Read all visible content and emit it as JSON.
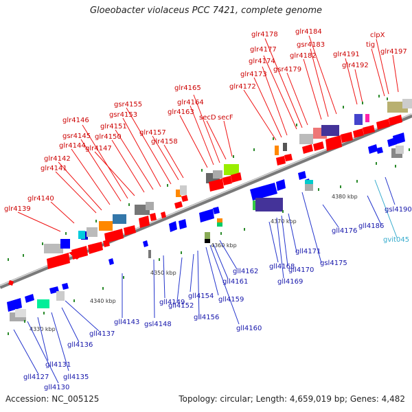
{
  "title": "Gloeobacter violaceus PCC 7421, complete genome",
  "accession": "Accession: NC_005125",
  "topology": "Topology: circular; Length: 4,659,019 bp; Genes: 4,482",
  "ticks": [
    "4330 kbp",
    "4340 kbp",
    "4350 kbp",
    "4360 kbp",
    "4370 kbp",
    "4380 kbp"
  ],
  "colors": {
    "forward": "#ff0000",
    "reverse": "#0000ff",
    "rna": "#1eb4e6",
    "label_forward": "#cc0000",
    "label_reverse": "#1414aa",
    "label_rna": "#33aacc",
    "backbone": "#8c8c8c",
    "tick": "#2a8a2a"
  },
  "top_labels": [
    {
      "text": "glr4139"
    },
    {
      "text": "glr4140"
    },
    {
      "text": "glr4141"
    },
    {
      "text": "glr4142"
    },
    {
      "text": "glr4144"
    },
    {
      "text": "gsr4145"
    },
    {
      "text": "glr4146"
    },
    {
      "text": "glr4147"
    },
    {
      "text": "glr4150"
    },
    {
      "text": "glr4151"
    },
    {
      "text": "gsr4153"
    },
    {
      "text": "gsr4155"
    },
    {
      "text": "glr4157"
    },
    {
      "text": "glr4158"
    },
    {
      "text": "glr4163"
    },
    {
      "text": "glr4164"
    },
    {
      "text": "glr4165"
    },
    {
      "text": "secD"
    },
    {
      "text": "secF"
    },
    {
      "text": "glr4172"
    },
    {
      "text": "glr4173"
    },
    {
      "text": "glr4174"
    },
    {
      "text": "glr4177"
    },
    {
      "text": "glr4178"
    },
    {
      "text": "gsr4179"
    },
    {
      "text": "glr4182"
    },
    {
      "text": "gsr4183"
    },
    {
      "text": "glr4184"
    },
    {
      "text": "glr4191"
    },
    {
      "text": "glr4192"
    },
    {
      "text": "tig"
    },
    {
      "text": "clpX"
    },
    {
      "text": "glr4197"
    }
  ],
  "bottom_labels": [
    {
      "text": "gll4127"
    },
    {
      "text": "gll4130"
    },
    {
      "text": "gll4131"
    },
    {
      "text": "gll4135"
    },
    {
      "text": "gll4136"
    },
    {
      "text": "gll4137"
    },
    {
      "text": "gll4143"
    },
    {
      "text": "gsl4148"
    },
    {
      "text": "gll4149"
    },
    {
      "text": "gll4152"
    },
    {
      "text": "gll4154"
    },
    {
      "text": "gll4156"
    },
    {
      "text": "gll4159"
    },
    {
      "text": "gll4160"
    },
    {
      "text": "gll4161"
    },
    {
      "text": "gll4162"
    },
    {
      "text": "gll4168"
    },
    {
      "text": "gll4169"
    },
    {
      "text": "gll4170"
    },
    {
      "text": "gll4171"
    },
    {
      "text": "gsl4175"
    },
    {
      "text": "gll4176"
    },
    {
      "text": "gll4186"
    },
    {
      "text": "gsl4190"
    },
    {
      "text": "gvit045"
    }
  ]
}
